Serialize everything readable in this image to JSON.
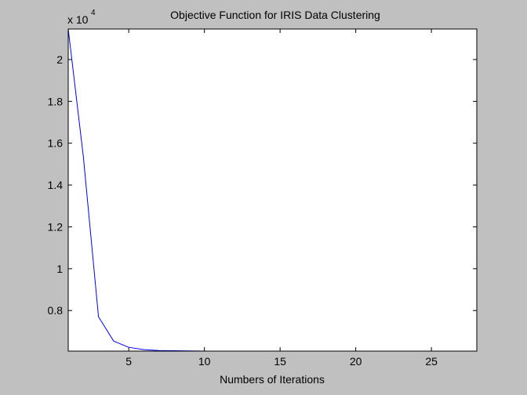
{
  "chart_data": {
    "type": "line",
    "title": "Objective Function for IRIS Data Clustering",
    "x_label": "Numbers of Iterations",
    "y_multiplier": {
      "base": "x 10",
      "exponent": "4"
    },
    "x": [
      1,
      2,
      3,
      4,
      5,
      6,
      7,
      8,
      9,
      10,
      11,
      12,
      13,
      14,
      15,
      16,
      17,
      18,
      19,
      20,
      21,
      22,
      23,
      24,
      25,
      26,
      27,
      28
    ],
    "series": [
      {
        "color": "#0000ff",
        "values": [
          2.146,
          1.535,
          0.77,
          0.654,
          0.624,
          0.613,
          0.609,
          0.608,
          0.607,
          0.606,
          0.606,
          0.606,
          0.606,
          0.606,
          0.606,
          0.606,
          0.606,
          0.606,
          0.606,
          0.606,
          0.606,
          0.606,
          0.606,
          0.606,
          0.606,
          0.606,
          0.606,
          0.606
        ]
      }
    ],
    "xlim": [
      1,
      28
    ],
    "xticks": [
      5,
      10,
      15,
      20,
      25
    ],
    "ylim": [
      0.606,
      2.146
    ],
    "yticks": [
      0.8,
      1,
      1.2,
      1.4,
      1.6,
      1.8,
      2
    ],
    "grid": false
  }
}
